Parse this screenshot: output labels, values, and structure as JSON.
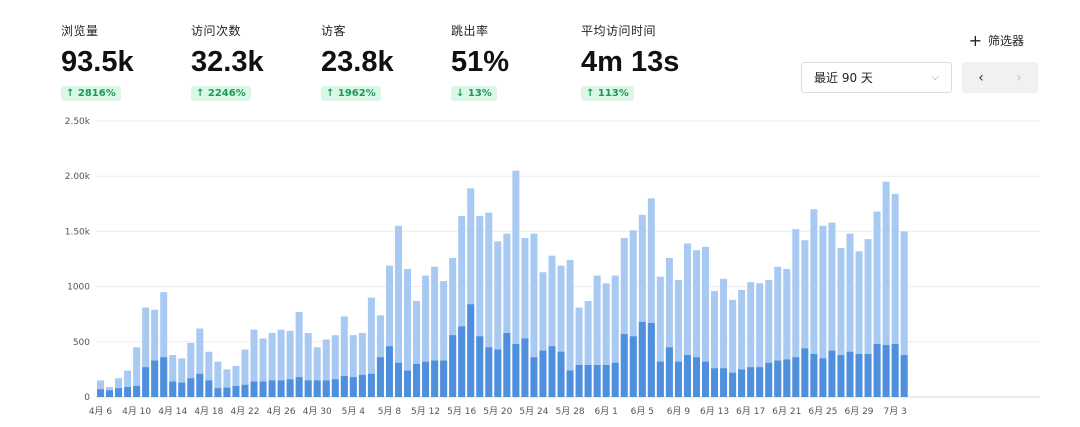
{
  "metrics": [
    {
      "label": "浏览量",
      "value": "93.5k",
      "change": "2816%",
      "dir": "up"
    },
    {
      "label": "访问次数",
      "value": "32.3k",
      "change": "2246%",
      "dir": "up"
    },
    {
      "label": "访客",
      "value": "23.8k",
      "change": "1962%",
      "dir": "up"
    },
    {
      "label": "跳出率",
      "value": "51%",
      "change": "13%",
      "dir": "down"
    },
    {
      "label": "平均访问时间",
      "value": "4m 13s",
      "change": "113%",
      "dir": "up"
    }
  ],
  "filter_label": "筛选器",
  "date_range": "最近 90 天",
  "colors": {
    "light": "#a8c9f2",
    "dark": "#4e8fde",
    "grid": "#ededed",
    "badge_bg": "#d9f6e6",
    "badge_fg": "#1a9a55"
  },
  "chart_data": {
    "type": "bar",
    "stacked": true,
    "ylim": [
      0,
      2500
    ],
    "yticks": [
      {
        "v": 0,
        "label": "0"
      },
      {
        "v": 500,
        "label": "500"
      },
      {
        "v": 1000,
        "label": "1000"
      },
      {
        "v": 1500,
        "label": "1.50k"
      },
      {
        "v": 2000,
        "label": "2.00k"
      },
      {
        "v": 2500,
        "label": "2.50k"
      }
    ],
    "xticks": [
      {
        "i": 0,
        "label": "4月 6"
      },
      {
        "i": 4,
        "label": "4月 10"
      },
      {
        "i": 8,
        "label": "4月 14"
      },
      {
        "i": 12,
        "label": "4月 18"
      },
      {
        "i": 16,
        "label": "4月 22"
      },
      {
        "i": 20,
        "label": "4月 26"
      },
      {
        "i": 24,
        "label": "4月 30"
      },
      {
        "i": 28,
        "label": "5月 4"
      },
      {
        "i": 32,
        "label": "5月 8"
      },
      {
        "i": 36,
        "label": "5月 12"
      },
      {
        "i": 40,
        "label": "5月 16"
      },
      {
        "i": 44,
        "label": "5月 20"
      },
      {
        "i": 48,
        "label": "5月 24"
      },
      {
        "i": 52,
        "label": "5月 28"
      },
      {
        "i": 56,
        "label": "6月 1"
      },
      {
        "i": 60,
        "label": "6月 5"
      },
      {
        "i": 64,
        "label": "6月 9"
      },
      {
        "i": 68,
        "label": "6月 13"
      },
      {
        "i": 72,
        "label": "6月 17"
      },
      {
        "i": 76,
        "label": "6月 21"
      },
      {
        "i": 80,
        "label": "6月 25"
      },
      {
        "i": 84,
        "label": "6月 29"
      },
      {
        "i": 88,
        "label": "7月 3"
      }
    ],
    "series": [
      {
        "name": "访问次数",
        "values": [
          70,
          60,
          80,
          90,
          100,
          270,
          330,
          360,
          140,
          130,
          170,
          210,
          150,
          80,
          85,
          100,
          110,
          140,
          140,
          150,
          150,
          160,
          180,
          150,
          150,
          150,
          160,
          190,
          180,
          200,
          210,
          360,
          460,
          310,
          240,
          300,
          320,
          330,
          330,
          560,
          640,
          840,
          550,
          450,
          430,
          580,
          480,
          530,
          360,
          420,
          460,
          410,
          240,
          290,
          290,
          290,
          290,
          310,
          570,
          550,
          680,
          670,
          320,
          450,
          320,
          380,
          360,
          320,
          260,
          260,
          220,
          250,
          270,
          270,
          310,
          330,
          340,
          360,
          440,
          390,
          350,
          420,
          380,
          410,
          390,
          390,
          480,
          470,
          480,
          380
        ]
      },
      {
        "name": "浏览量",
        "values": [
          150,
          90,
          170,
          240,
          450,
          810,
          790,
          950,
          380,
          350,
          490,
          620,
          410,
          320,
          250,
          280,
          430,
          610,
          530,
          580,
          610,
          600,
          770,
          580,
          450,
          520,
          560,
          730,
          560,
          580,
          900,
          740,
          1190,
          1550,
          1160,
          870,
          1100,
          1180,
          1050,
          1260,
          1640,
          1890,
          1640,
          1670,
          1410,
          1480,
          2050,
          1440,
          1480,
          1130,
          1280,
          1190,
          1240,
          810,
          870,
          1100,
          1030,
          1100,
          1440,
          1510,
          1650,
          1800,
          1090,
          1260,
          1060,
          1390,
          1330,
          1360,
          960,
          1070,
          880,
          970,
          1040,
          1030,
          1060,
          1180,
          1160,
          1520,
          1420,
          1700,
          1550,
          1580,
          1350,
          1480,
          1320,
          1430,
          1680,
          1950,
          1840,
          1500
        ]
      }
    ]
  }
}
